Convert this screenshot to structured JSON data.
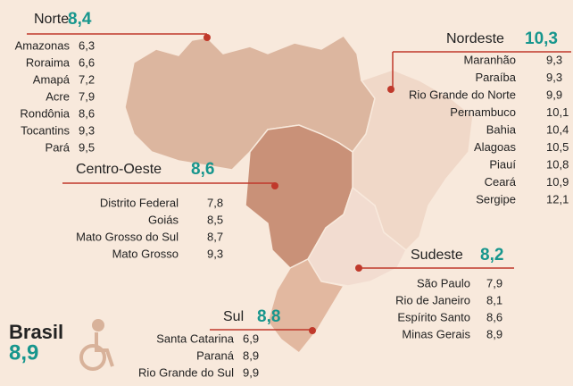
{
  "brasil": {
    "label": "Brasil",
    "value": "8,9"
  },
  "regions": [
    {
      "name": "Norte",
      "value": "8,4",
      "states": [
        {
          "name": "Amazonas",
          "value": "6,3"
        },
        {
          "name": "Roraima",
          "value": "6,6"
        },
        {
          "name": "Amapá",
          "value": "7,2"
        },
        {
          "name": "Acre",
          "value": "7,9"
        },
        {
          "name": "Rondônia",
          "value": "8,6"
        },
        {
          "name": "Tocantins",
          "value": "9,3"
        },
        {
          "name": "Pará",
          "value": "9,5"
        }
      ]
    },
    {
      "name": "Nordeste",
      "value": "10,3",
      "states": [
        {
          "name": "Maranhão",
          "value": "9,3"
        },
        {
          "name": "Paraíba",
          "value": "9,3"
        },
        {
          "name": "Rio Grande do Norte",
          "value": "9,9"
        },
        {
          "name": "Pernambuco",
          "value": "10,1"
        },
        {
          "name": "Bahia",
          "value": "10,4"
        },
        {
          "name": "Alagoas",
          "value": "10,5"
        },
        {
          "name": "Piauí",
          "value": "10,8"
        },
        {
          "name": "Ceará",
          "value": "10,9"
        },
        {
          "name": "Sergipe",
          "value": "12,1"
        }
      ]
    },
    {
      "name": "Centro-Oeste",
      "value": "8,6",
      "states": [
        {
          "name": "Distrito Federal",
          "value": "7,8"
        },
        {
          "name": "Goiás",
          "value": "8,5"
        },
        {
          "name": "Mato Grosso do Sul",
          "value": "8,7"
        },
        {
          "name": "Mato Grosso",
          "value": "9,3"
        }
      ]
    },
    {
      "name": "Sudeste",
      "value": "8,2",
      "states": [
        {
          "name": "São Paulo",
          "value": "7,9"
        },
        {
          "name": "Rio de Janeiro",
          "value": "8,1"
        },
        {
          "name": "Espírito Santo",
          "value": "8,6"
        },
        {
          "name": "Minas Gerais",
          "value": "8,9"
        }
      ]
    },
    {
      "name": "Sul",
      "value": "8,8",
      "states": [
        {
          "name": "Santa Catarina",
          "value": "6,9"
        },
        {
          "name": "Paraná",
          "value": "8,9"
        },
        {
          "name": "Rio Grande do Sul",
          "value": "9,9"
        }
      ]
    }
  ]
}
